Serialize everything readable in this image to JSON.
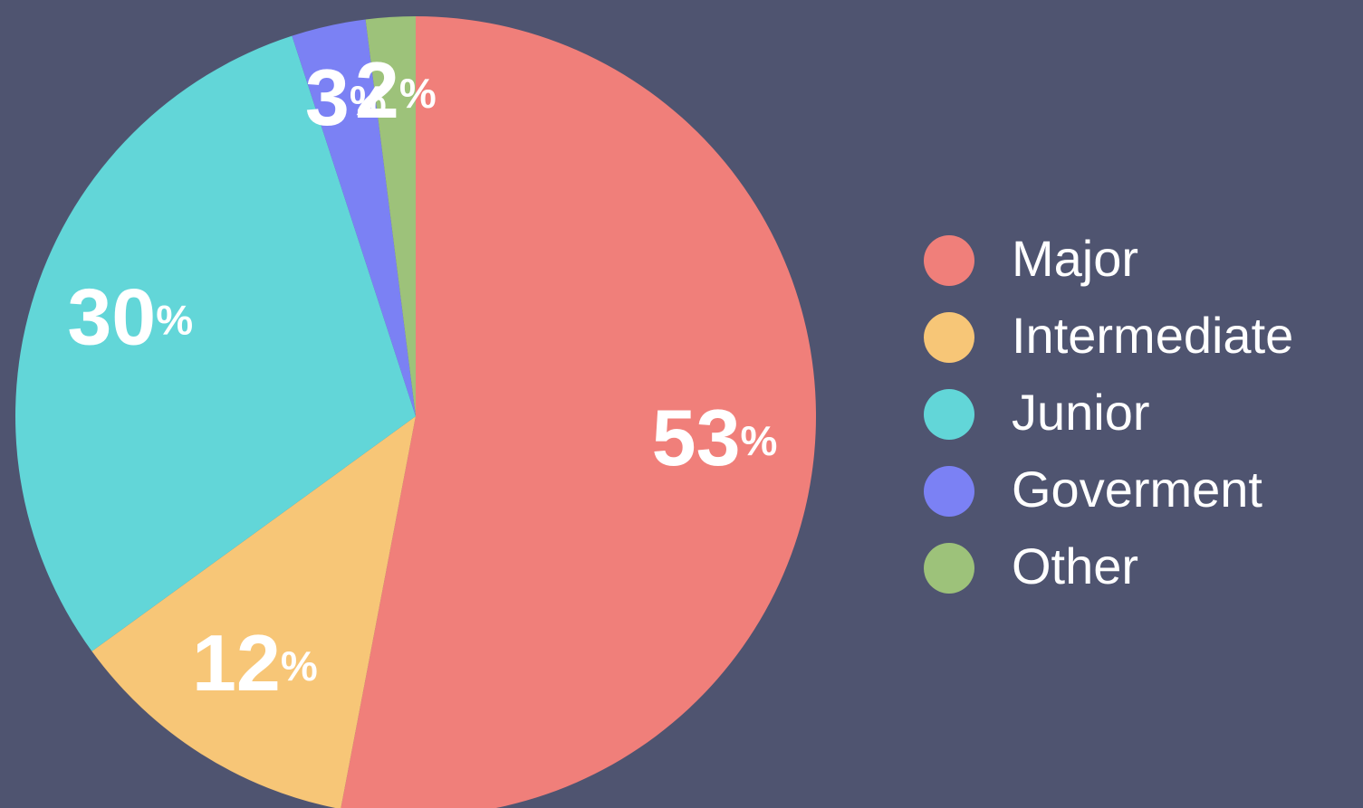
{
  "chart_data": {
    "type": "pie",
    "categories": [
      "Major",
      "Intermediate",
      "Junior",
      "Goverment",
      "Other"
    ],
    "values": [
      53,
      12,
      30,
      3,
      2
    ],
    "value_labels": [
      "53%",
      "12%",
      "30%",
      "3%",
      "2%"
    ],
    "colors": [
      "#f07f7a",
      "#f7c677",
      "#62d6d8",
      "#7b81f4",
      "#9dc27a"
    ],
    "legend": "right"
  }
}
